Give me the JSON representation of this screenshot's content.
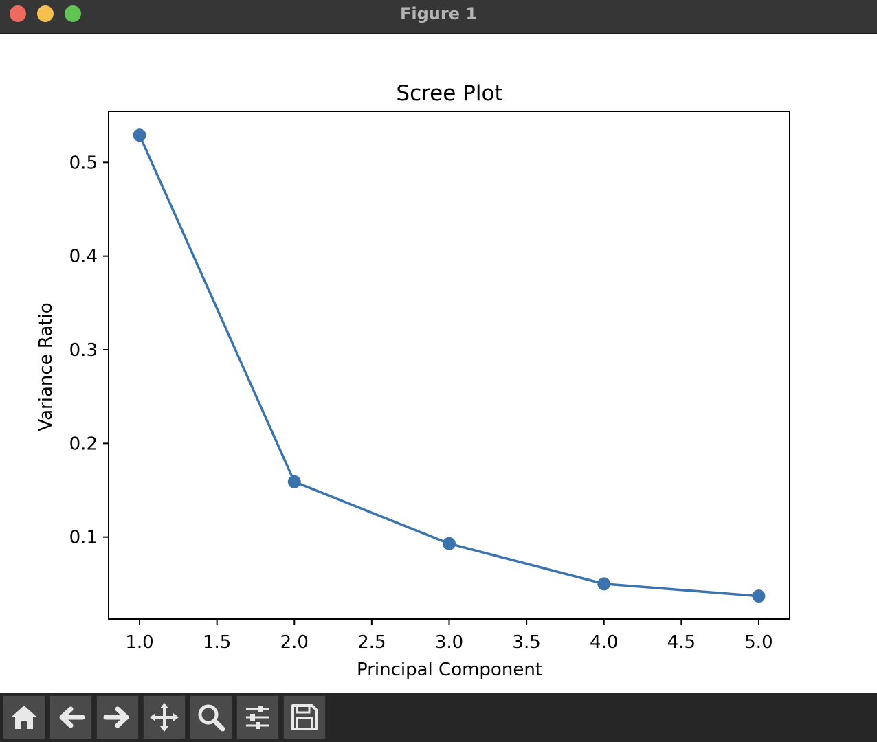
{
  "window": {
    "title": "Figure 1",
    "controls": [
      "close",
      "minimize",
      "zoom"
    ]
  },
  "toolbar": {
    "tools": [
      {
        "icon": "home-icon"
      },
      {
        "icon": "back-arrow-icon"
      },
      {
        "icon": "forward-arrow-icon"
      },
      {
        "icon": "pan-move-icon"
      },
      {
        "icon": "zoom-magnifier-icon"
      },
      {
        "icon": "configure-subplots-icon"
      },
      {
        "icon": "save-floppy-icon"
      }
    ]
  },
  "chart_data": {
    "type": "line",
    "title": "Scree Plot",
    "xlabel": "Principal Component",
    "ylabel": "Variance Ratio",
    "x": [
      1,
      2,
      3,
      4,
      5
    ],
    "series": [
      {
        "values": [
          0.529,
          0.159,
          0.093,
          0.05,
          0.037
        ],
        "color": "#3a73ad",
        "marker": "circle"
      }
    ],
    "xlim": [
      0.8,
      5.2
    ],
    "ylim": [
      0.0125,
      0.5545
    ],
    "xticks": [
      1.0,
      1.5,
      2.0,
      2.5,
      3.0,
      3.5,
      4.0,
      4.5,
      5.0
    ],
    "xtick_labels": [
      "1.0",
      "1.5",
      "2.0",
      "2.5",
      "3.0",
      "3.5",
      "4.0",
      "4.5",
      "5.0"
    ],
    "yticks": [
      0.1,
      0.2,
      0.3,
      0.4,
      0.5
    ],
    "ytick_labels": [
      "0.1",
      "0.2",
      "0.3",
      "0.4",
      "0.5"
    ],
    "grid": false,
    "legend": "none"
  }
}
